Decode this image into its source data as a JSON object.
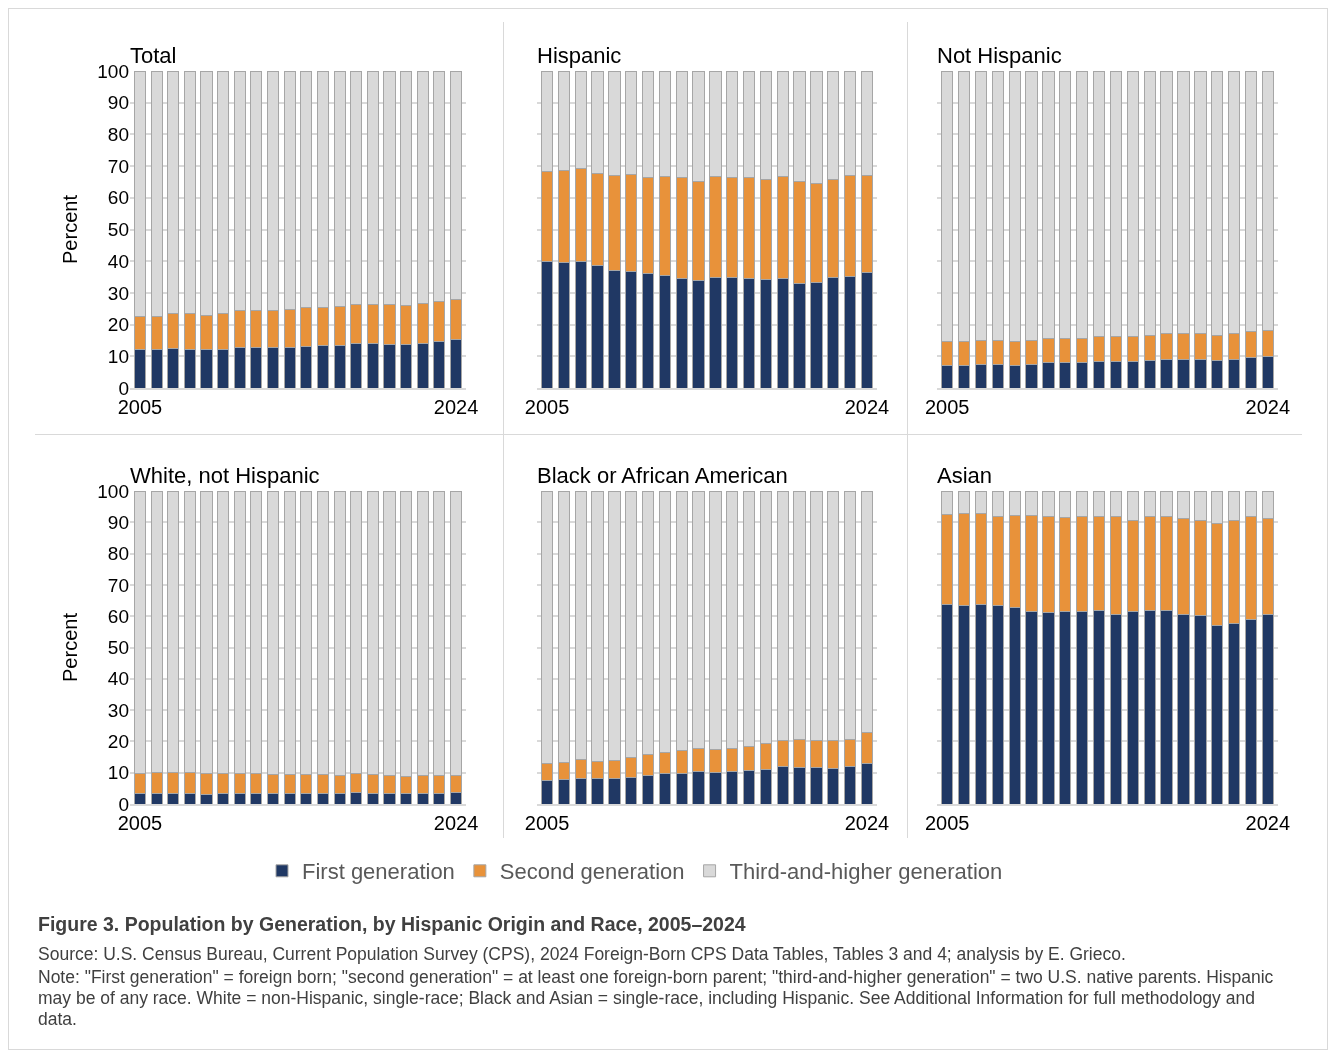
{
  "chart_data": [
    {
      "type": "bar",
      "title": "Total",
      "ylabel": "Percent",
      "stacked": true,
      "grid": "y",
      "ylim": [
        0,
        100
      ],
      "yticks": [
        0,
        10,
        20,
        30,
        40,
        50,
        60,
        70,
        80,
        90,
        100
      ],
      "categories": [
        "2005",
        null,
        null,
        null,
        null,
        null,
        null,
        null,
        null,
        null,
        null,
        null,
        null,
        null,
        null,
        null,
        null,
        null,
        null,
        "2024"
      ],
      "series": [
        {
          "color": "#203864",
          "values": [
            12,
            12,
            12.5,
            12.3,
            12,
            12.2,
            12.8,
            12.8,
            12.8,
            12.8,
            13,
            13.4,
            13.4,
            14,
            14,
            13.6,
            13.6,
            14,
            14.6,
            15.3
          ]
        },
        {
          "color": "#e8923a",
          "values": [
            10.5,
            10.7,
            11,
            11.1,
            11,
            11.3,
            11.5,
            11.6,
            11.8,
            12,
            12.4,
            12,
            12.3,
            12.5,
            12.5,
            12.6,
            12.5,
            12.7,
            12.8,
            12.7
          ]
        },
        {
          "color": "#d9d9d9",
          "values": [
            77.5,
            77.3,
            76.5,
            76.6,
            77,
            76.5,
            75.7,
            75.6,
            75.4,
            75.2,
            74.6,
            74.6,
            74.3,
            73.5,
            73.5,
            73.8,
            73.9,
            73.3,
            72.6,
            72
          ]
        }
      ]
    },
    {
      "type": "bar",
      "title": "Hispanic",
      "stacked": true,
      "grid": "y",
      "tick_labels": "x",
      "ylim": [
        0,
        100
      ],
      "yticks": [
        0,
        10,
        20,
        30,
        40,
        50,
        60,
        70,
        80,
        90,
        100
      ],
      "categories": [
        "2005",
        null,
        null,
        null,
        null,
        null,
        null,
        null,
        null,
        null,
        null,
        null,
        null,
        null,
        null,
        null,
        null,
        null,
        null,
        "2024"
      ],
      "series": [
        {
          "color": "#203864",
          "values": [
            40,
            39.7,
            40,
            38.5,
            37,
            36.8,
            36,
            35.4,
            34.6,
            33.8,
            34.9,
            34.8,
            34.5,
            34.3,
            34.5,
            33,
            33.3,
            34.8,
            35.2,
            36.5
          ]
        },
        {
          "color": "#e8923a",
          "values": [
            28.2,
            28.9,
            29.1,
            29.2,
            29.9,
            30.4,
            30.4,
            31.2,
            31.8,
            31.4,
            31.7,
            31.6,
            31.9,
            31.5,
            32.1,
            32.2,
            31.3,
            31.1,
            31.8,
            30.5
          ]
        },
        {
          "color": "#d9d9d9",
          "values": [
            31.8,
            31.4,
            30.9,
            32.3,
            33.1,
            32.8,
            33.6,
            33.4,
            33.6,
            34.8,
            33.4,
            33.6,
            33.6,
            34.2,
            33.4,
            34.8,
            35.4,
            34.1,
            33,
            33
          ]
        }
      ]
    },
    {
      "type": "bar",
      "title": "Not Hispanic",
      "stacked": true,
      "grid": "y",
      "tick_labels": "x",
      "ylim": [
        0,
        100
      ],
      "yticks": [
        0,
        10,
        20,
        30,
        40,
        50,
        60,
        70,
        80,
        90,
        100
      ],
      "categories": [
        "2005",
        null,
        null,
        null,
        null,
        null,
        null,
        null,
        null,
        null,
        null,
        null,
        null,
        null,
        null,
        null,
        null,
        null,
        null,
        "2024"
      ],
      "series": [
        {
          "color": "#203864",
          "values": [
            7.1,
            7,
            7.4,
            7.4,
            7.2,
            7.4,
            7.9,
            8,
            8.1,
            8.3,
            8.3,
            8.4,
            8.7,
            9.1,
            9,
            9,
            8.7,
            9,
            9.5,
            9.9
          ]
        },
        {
          "color": "#e8923a",
          "values": [
            7.6,
            7.7,
            7.6,
            7.6,
            7.5,
            7.6,
            7.6,
            7.5,
            7.5,
            7.8,
            8,
            7.8,
            7.9,
            8.1,
            8.2,
            8.1,
            8,
            8.1,
            8.3,
            8.3
          ]
        },
        {
          "color": "#d9d9d9",
          "values": [
            85.3,
            85.3,
            85,
            85,
            85.3,
            85,
            84.5,
            84.5,
            84.4,
            83.9,
            83.7,
            83.8,
            83.4,
            82.8,
            82.8,
            82.9,
            83.3,
            82.9,
            82.2,
            81.8
          ]
        }
      ]
    },
    {
      "type": "bar",
      "title": "White, not Hispanic",
      "ylabel": "Percent",
      "stacked": true,
      "grid": "y",
      "ylim": [
        0,
        100
      ],
      "yticks": [
        0,
        10,
        20,
        30,
        40,
        50,
        60,
        70,
        80,
        90,
        100
      ],
      "categories": [
        "2005",
        null,
        null,
        null,
        null,
        null,
        null,
        null,
        null,
        null,
        null,
        null,
        null,
        null,
        null,
        null,
        null,
        null,
        null,
        "2024"
      ],
      "series": [
        {
          "color": "#203864",
          "values": [
            3.2,
            3.2,
            3.4,
            3.4,
            3.1,
            3.2,
            3.4,
            3.4,
            3.4,
            3.4,
            3.4,
            3.4,
            3.4,
            3.8,
            3.4,
            3.4,
            3.4,
            3.5,
            3.5,
            3.8
          ]
        },
        {
          "color": "#e8923a",
          "values": [
            6.7,
            6.8,
            6.8,
            6.6,
            6.6,
            6.5,
            6.4,
            6.2,
            6,
            6,
            6,
            6,
            5.7,
            5.8,
            6,
            5.8,
            5.4,
            5.6,
            5.6,
            5.4
          ]
        },
        {
          "color": "#d9d9d9",
          "values": [
            90.1,
            90,
            89.8,
            90,
            90.3,
            90.3,
            90.2,
            90.4,
            90.6,
            90.6,
            90.6,
            90.6,
            90.9,
            90.4,
            90.6,
            90.8,
            91.2,
            90.9,
            90.9,
            90.8
          ]
        }
      ]
    },
    {
      "type": "bar",
      "title": "Black or African American",
      "stacked": true,
      "grid": "y",
      "tick_labels": "x",
      "legend": "bottom",
      "ylim": [
        0,
        100
      ],
      "yticks": [
        0,
        10,
        20,
        30,
        40,
        50,
        60,
        70,
        80,
        90,
        100
      ],
      "categories": [
        "2005",
        null,
        null,
        null,
        null,
        null,
        null,
        null,
        null,
        null,
        null,
        null,
        null,
        null,
        null,
        null,
        null,
        null,
        null,
        "2024"
      ],
      "series": [
        {
          "name": "First generation",
          "color": "#203864",
          "values": [
            7.6,
            7.8,
            8.3,
            8,
            8.1,
            8.5,
            9.2,
            9.6,
            9.9,
            10.5,
            10.1,
            10.3,
            10.7,
            10.9,
            11.9,
            11.8,
            11.6,
            11.5,
            11.9,
            13.1
          ]
        },
        {
          "name": "Second generation",
          "color": "#e8923a",
          "values": [
            5.3,
            5.4,
            5.8,
            5.5,
            5.7,
            6.4,
            6.6,
            6.8,
            7.2,
            7.1,
            7.3,
            7.4,
            7.8,
            8.3,
            8.4,
            8.7,
            8.6,
            8.7,
            8.6,
            9.8
          ]
        },
        {
          "name": "Third-and-higher generation",
          "color": "#d9d9d9",
          "values": [
            87.1,
            86.8,
            85.9,
            86.5,
            86.2,
            85.1,
            84.2,
            83.6,
            82.9,
            82.4,
            82.6,
            82.3,
            81.5,
            80.8,
            79.7,
            79.5,
            79.8,
            79.8,
            79.5,
            77.1
          ]
        }
      ],
      "annotations": [
        "Figure 3. Population by Generation, by Hispanic Origin and Race, 2005–2024",
        "Source: U.S. Census Bureau, Current Population Survey (CPS), 2024 Foreign-Born CPS Data Tables, Tables 3 and 4; analysis by E. Grieco.",
        "Note: \"First generation\" = foreign born; \"second generation\" = at least one foreign-born parent; \"third-and-higher generation\" = two U.S. native parents. Hispanic may be of any race. White = non-Hispanic, single-race; Black and Asian = single-race, including Hispanic. See Additional Information for full methodology and data."
      ]
    },
    {
      "type": "bar",
      "title": "Asian",
      "stacked": true,
      "grid": "y",
      "tick_labels": "x",
      "ylim": [
        0,
        100
      ],
      "yticks": [
        0,
        10,
        20,
        30,
        40,
        50,
        60,
        70,
        80,
        90,
        100
      ],
      "categories": [
        "2005",
        null,
        null,
        null,
        null,
        null,
        null,
        null,
        null,
        null,
        null,
        null,
        null,
        null,
        null,
        null,
        null,
        null,
        null,
        "2024"
      ],
      "series": [
        {
          "color": "#203864",
          "values": [
            63.8,
            63.3,
            63.6,
            63.3,
            62.7,
            61.4,
            61.2,
            61.4,
            61.4,
            61.7,
            60.6,
            61.4,
            61.7,
            61.7,
            60.6,
            60.3,
            57,
            57.6,
            59,
            60.7
          ]
        },
        {
          "color": "#e8923a",
          "values": [
            28.8,
            29.5,
            29.3,
            28.6,
            29.4,
            30.7,
            30.7,
            30.1,
            30.3,
            30.1,
            31.2,
            29.3,
            30.1,
            30.3,
            30.5,
            30.4,
            32.6,
            32.9,
            32.7,
            30.5
          ]
        },
        {
          "color": "#d9d9d9",
          "values": [
            7.4,
            7.2,
            7.1,
            8.1,
            7.9,
            7.9,
            8.1,
            8.5,
            8.3,
            8.2,
            8.2,
            9.3,
            8.2,
            8,
            8.9,
            9.3,
            10.4,
            9.5,
            8.3,
            8.8
          ]
        }
      ]
    }
  ]
}
